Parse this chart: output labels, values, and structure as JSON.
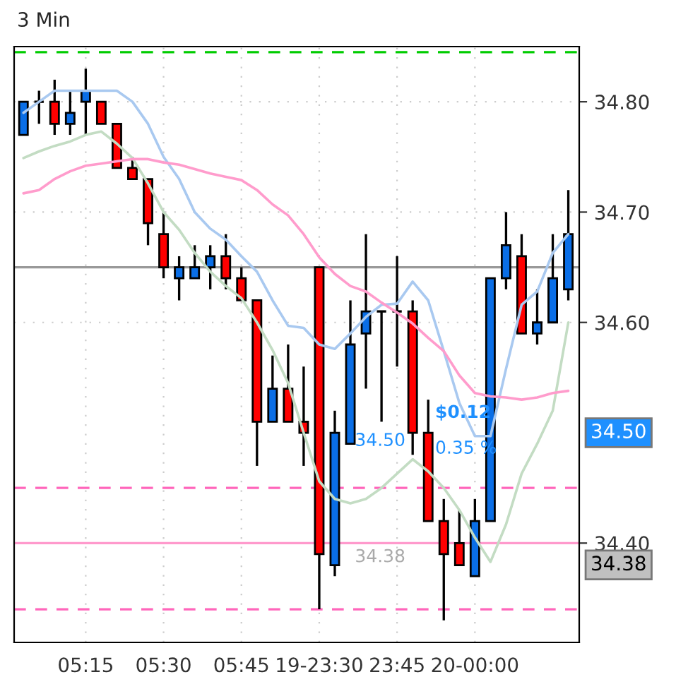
{
  "chart_data": {
    "type": "candlestick",
    "title": "3 Min",
    "categories": [
      null,
      null,
      null,
      null,
      "05:15",
      null,
      null,
      null,
      null,
      "05:30",
      null,
      null,
      null,
      null,
      "05:45",
      null,
      null,
      null,
      null,
      "19-23:30",
      null,
      null,
      null,
      null,
      "23:45",
      null,
      null,
      null,
      null,
      "20-00:00",
      null,
      null,
      null,
      null,
      null,
      null
    ],
    "ohlc": [
      [
        34.77,
        34.8,
        34.77,
        34.8
      ],
      [
        34.8,
        34.81,
        34.78,
        34.8
      ],
      [
        34.8,
        34.82,
        34.77,
        34.78
      ],
      [
        34.78,
        34.81,
        34.77,
        34.79
      ],
      [
        34.8,
        34.83,
        34.77,
        34.81
      ],
      [
        34.8,
        34.8,
        34.78,
        34.78
      ],
      [
        34.78,
        34.78,
        34.74,
        34.74
      ],
      [
        34.74,
        34.75,
        34.73,
        34.73
      ],
      [
        34.73,
        34.73,
        34.67,
        34.69
      ],
      [
        34.68,
        34.7,
        34.64,
        34.65
      ],
      [
        34.64,
        34.66,
        34.62,
        34.65
      ],
      [
        34.64,
        34.67,
        34.64,
        34.65
      ],
      [
        34.65,
        34.67,
        34.63,
        34.66
      ],
      [
        34.66,
        34.68,
        34.63,
        34.64
      ],
      [
        34.64,
        34.65,
        34.62,
        34.62
      ],
      [
        34.62,
        34.62,
        34.47,
        34.51
      ],
      [
        34.51,
        34.57,
        34.51,
        34.54
      ],
      [
        34.54,
        34.58,
        34.51,
        34.51
      ],
      [
        34.51,
        34.56,
        34.47,
        34.5
      ],
      [
        34.65,
        34.65,
        34.34,
        34.39
      ],
      [
        34.38,
        34.52,
        34.37,
        34.5
      ],
      [
        34.49,
        34.62,
        34.49,
        34.58
      ],
      [
        34.59,
        34.68,
        34.54,
        34.61
      ],
      [
        34.61,
        34.61,
        34.51,
        34.61
      ],
      [
        34.61,
        34.66,
        34.56,
        34.61
      ],
      [
        34.61,
        34.62,
        34.48,
        34.5
      ],
      [
        34.5,
        34.53,
        34.42,
        34.42
      ],
      [
        34.42,
        34.44,
        34.33,
        34.39
      ],
      [
        34.4,
        34.43,
        34.38,
        34.38
      ],
      [
        34.37,
        34.44,
        34.37,
        34.42
      ],
      [
        34.42,
        34.64,
        34.42,
        34.64
      ],
      [
        34.64,
        34.7,
        34.63,
        34.67
      ],
      [
        34.66,
        34.68,
        34.59,
        34.59
      ],
      [
        34.59,
        34.63,
        34.58,
        34.6
      ],
      [
        34.6,
        34.68,
        34.6,
        34.64
      ],
      [
        34.63,
        34.72,
        34.62,
        34.68
      ]
    ],
    "colors": [
      "#0a6ee6",
      "#000000",
      "#ff0000",
      "#0a6ee6",
      "#0a6ee6",
      "#ff0000",
      "#ff0000",
      "#ff0000",
      "#ff0000",
      "#ff0000",
      "#0a6ee6",
      "#0a6ee6",
      "#0a6ee6",
      "#ff0000",
      "#ff0000",
      "#ff0000",
      "#0a6ee6",
      "#ff0000",
      "#ff0000",
      "#ff0000",
      "#0a6ee6",
      "#0a6ee6",
      "#0a6ee6",
      "#000000",
      "#000000",
      "#ff0000",
      "#ff0000",
      "#ff0000",
      "#ff0000",
      "#0a6ee6",
      "#0a6ee6",
      "#0a6ee6",
      "#ff0000",
      "#0a6ee6",
      "#0a6ee6",
      "#0a6ee6"
    ],
    "series": [
      {
        "type": "line",
        "color": "#a9c9f0",
        "values": [
          34.79,
          34.8,
          34.81,
          34.81,
          34.81,
          34.81,
          34.81,
          34.8,
          34.78,
          34.75,
          34.73,
          34.7,
          34.685,
          34.675,
          34.66,
          34.646,
          34.62,
          34.597,
          34.595,
          34.58,
          34.576,
          34.59,
          34.605,
          34.616,
          34.617,
          34.637,
          34.62,
          34.574,
          34.527,
          34.497,
          34.497,
          34.558,
          34.616,
          34.628,
          34.663,
          34.68
        ]
      },
      {
        "type": "line",
        "color": "#c3dcc3",
        "values": [
          34.749,
          34.755,
          34.76,
          34.764,
          34.77,
          34.773,
          34.762,
          34.749,
          34.726,
          34.7,
          34.684,
          34.663,
          34.646,
          34.633,
          34.622,
          34.6,
          34.575,
          34.545,
          34.5,
          34.456,
          34.44,
          34.436,
          34.44,
          34.45,
          34.463,
          34.476,
          34.465,
          34.45,
          34.43,
          34.405,
          34.383,
          34.417,
          34.463,
          34.49,
          34.52,
          34.6
        ]
      },
      {
        "type": "line",
        "color": "#ff9ccc",
        "values": [
          34.717,
          34.72,
          34.73,
          34.737,
          34.742,
          34.744,
          34.746,
          34.748,
          34.748,
          34.745,
          34.743,
          34.739,
          34.735,
          34.732,
          34.729,
          34.72,
          34.707,
          34.697,
          34.68,
          34.659,
          34.644,
          34.633,
          34.628,
          34.618,
          34.609,
          34.599,
          34.586,
          34.574,
          34.552,
          34.536,
          34.533,
          34.532,
          34.53,
          34.532,
          34.536,
          34.538
        ]
      }
    ],
    "ylim": [
      34.31,
      34.85
    ],
    "yticks": [
      {
        "value": 34.4,
        "label": "34.40"
      },
      {
        "value": 34.6,
        "label": "34.60"
      },
      {
        "value": 34.7,
        "label": "34.70"
      },
      {
        "value": 34.8,
        "label": "34.80"
      }
    ],
    "grid": true,
    "ref_lines": [
      {
        "axis": "y",
        "value": 34.65,
        "color": "#999999",
        "line_style": "solid"
      },
      {
        "axis": "y",
        "value": 34.45,
        "color": "#ff66bb",
        "line_style": "dashed"
      },
      {
        "axis": "y",
        "value": 34.4,
        "color": "#ff99cc",
        "line_style": "solid"
      },
      {
        "axis": "y",
        "value": 34.34,
        "color": "#ff66bb",
        "line_style": "dashed"
      },
      {
        "axis": "y",
        "value": 34.845,
        "color": "#00cc00",
        "line_style": "dashed"
      }
    ],
    "annotations": [
      "$0.12",
      "34.50",
      "0.35 %",
      "34.38",
      "34.50",
      "34.38"
    ]
  }
}
